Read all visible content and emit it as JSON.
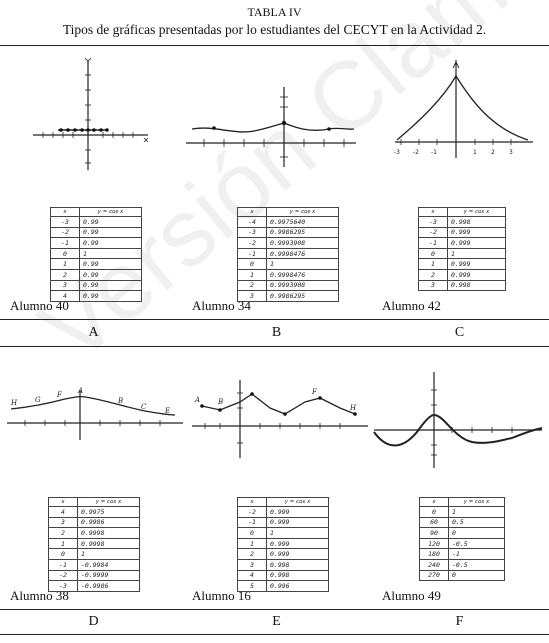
{
  "caption": {
    "label": "TABLA IV",
    "title": "Tipos de gráficas presentadas por lo estudiantes del CECYT en la Actividad 2."
  },
  "watermark": "Versión Clame",
  "table_header": {
    "x": "x",
    "y": "y = cos x"
  },
  "panels": [
    {
      "student": "Alumno 40",
      "letter": "A",
      "rows": [
        [
          "-3",
          "0.99"
        ],
        [
          "-2",
          "0.99"
        ],
        [
          "-1",
          "0.99"
        ],
        [
          "0",
          "1"
        ],
        [
          "1",
          "0.99"
        ],
        [
          "2",
          "0.99"
        ],
        [
          "3",
          "0.99"
        ],
        [
          "4",
          "0.99"
        ]
      ]
    },
    {
      "student": "Alumno 34",
      "letter": "B",
      "rows": [
        [
          "-4",
          "0.9975640"
        ],
        [
          "-3",
          "0.9986295"
        ],
        [
          "-2",
          "0.9993908"
        ],
        [
          "-1",
          "0.9998476"
        ],
        [
          "0",
          "1"
        ],
        [
          "1",
          "0.9998476"
        ],
        [
          "2",
          "0.9993908"
        ],
        [
          "3",
          "0.9986295"
        ]
      ]
    },
    {
      "student": "Alumno 42",
      "letter": "C",
      "rows": [
        [
          "-3",
          "0.998"
        ],
        [
          "-2",
          "0.999"
        ],
        [
          "-1",
          "0.999"
        ],
        [
          "0",
          "1"
        ],
        [
          "1",
          "0.999"
        ],
        [
          "2",
          "0.999"
        ],
        [
          "3",
          "0.998"
        ]
      ]
    },
    {
      "student": "Alumno 38",
      "letter": "D",
      "rows": [
        [
          "4",
          "0.9975"
        ],
        [
          "3",
          "0.9986"
        ],
        [
          "2",
          "0.9998"
        ],
        [
          "1",
          "0.9998"
        ],
        [
          "0",
          "1"
        ],
        [
          "-1",
          "-0.9984"
        ],
        [
          "-2",
          "-0.9999"
        ],
        [
          "-3",
          "-0.9986"
        ]
      ]
    },
    {
      "student": "Alumno 16",
      "letter": "E",
      "rows": [
        [
          "-2",
          "0.999"
        ],
        [
          "-1",
          "0.999"
        ],
        [
          "0",
          "1"
        ],
        [
          "1",
          "0.999"
        ],
        [
          "2",
          "0.999"
        ],
        [
          "3",
          "0.998"
        ],
        [
          "4",
          "0.998"
        ],
        [
          "5",
          "0.996"
        ]
      ]
    },
    {
      "student": "Alumno 49",
      "letter": "F",
      "rows": [
        [
          "0",
          "1"
        ],
        [
          "60",
          "0.5"
        ],
        [
          "90",
          "0"
        ],
        [
          "120",
          "-0.5"
        ],
        [
          "180",
          "-1"
        ],
        [
          "240",
          "-0.5"
        ],
        [
          "270",
          "0"
        ]
      ]
    }
  ]
}
